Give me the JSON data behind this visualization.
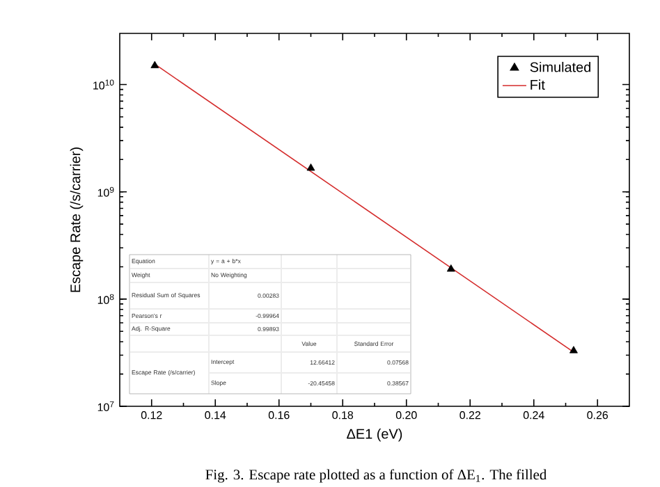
{
  "chart_data": {
    "type": "scatter",
    "xlabel": "ΔE1 (eV)",
    "ylabel": "Escape Rate (/s/carrier)",
    "xlim": [
      0.11,
      0.27
    ],
    "ylim": [
      10000000,
      30000000000
    ],
    "log": "y",
    "xticks": [
      {
        "value": 0.12,
        "label": "0.12"
      },
      {
        "value": 0.14,
        "label": "0.14"
      },
      {
        "value": 0.16,
        "label": "0.16"
      },
      {
        "value": 0.18,
        "label": "0.18"
      },
      {
        "value": 0.2,
        "label": "0.20"
      },
      {
        "value": 0.22,
        "label": "0.22"
      },
      {
        "value": 0.24,
        "label": "0.24"
      },
      {
        "value": 0.26,
        "label": "0.26"
      }
    ],
    "yticks": [
      {
        "value": 10000000,
        "label": "10$^{7}$"
      },
      {
        "value": 100000000,
        "label": "10$^{8}$"
      },
      {
        "value": 1000000000,
        "label": "10$^{9}$"
      },
      {
        "value": 10000000000,
        "label": "10$^{10}$"
      }
    ],
    "series": [
      {
        "name": "Simulated",
        "color": "#000000",
        "marker": "triangle",
        "x": [
          0.121,
          0.17,
          0.214,
          0.2525
        ],
        "values": [
          15000000000,
          1660000000,
          190000000,
          33000000
        ]
      },
      {
        "name": "Fit",
        "type": "line",
        "color": "#d42a2a",
        "marker": "none",
        "line_style": "solid",
        "x": [
          0.121,
          0.2525
        ],
        "values": [
          15500000000,
          32000000
        ]
      }
    ],
    "legend": "top right",
    "grid": false,
    "annotations": [
      "Equation",
      "y = a + b*x",
      "Weight",
      "No Weighting",
      "Residual Sum of Squares",
      "0.00283",
      "Pearson's r",
      "-0.99964",
      "Adj. R-Square",
      "0.99893",
      "Value",
      "Standard Error",
      "Escape Rate (/s/carrier)",
      "Intercept",
      "12.66412",
      "0.07568",
      "Slope",
      "-20.45458",
      "0.38567",
      "Fig. 3. Escape rate plotted as a function of ΔE$_{1}$. The filled"
    ]
  }
}
